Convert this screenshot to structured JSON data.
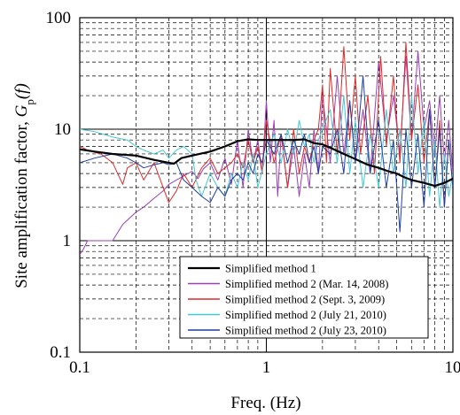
{
  "chart_data": {
    "type": "line",
    "x_scale": "log",
    "y_scale": "log",
    "xlim": [
      0.1,
      10
    ],
    "ylim": [
      0.1,
      100
    ],
    "xlabel": "Freq. (Hz)",
    "ylabel_prefix": "Site amplification factor, ",
    "ylabel_symbol": "G",
    "ylabel_sub": "p",
    "ylabel_suffix": "(f)",
    "x_ticks": [
      {
        "value": 0.1,
        "label": "0.1"
      },
      {
        "value": 1,
        "label": "1"
      },
      {
        "value": 10,
        "label": "10"
      }
    ],
    "y_ticks": [
      {
        "value": 0.1,
        "label": "0.1"
      },
      {
        "value": 1,
        "label": "1"
      },
      {
        "value": 10,
        "label": "10"
      },
      {
        "value": 100,
        "label": "100"
      }
    ],
    "grid": true,
    "legend_position": "bottom-right",
    "series": [
      {
        "name": "Simplified method 1",
        "color": "#000000",
        "width": 2.2,
        "x": [
          0.1,
          0.12,
          0.15,
          0.2,
          0.25,
          0.3,
          0.32,
          0.35,
          0.4,
          0.5,
          0.6,
          0.7,
          0.8,
          0.9,
          1.0,
          1.2,
          1.4,
          1.6,
          1.8,
          2.0,
          2.3,
          2.6,
          3.0,
          3.5,
          4.0,
          4.5,
          5.0,
          5.5,
          6.0,
          7.0,
          8.0,
          9.0,
          10.0
        ],
        "y": [
          6.6,
          6.3,
          6.0,
          5.8,
          5.3,
          5.0,
          4.9,
          5.5,
          5.8,
          6.3,
          7.0,
          7.8,
          8.1,
          8.0,
          8.0,
          8.0,
          8.0,
          8.1,
          7.5,
          7.3,
          6.6,
          6.0,
          5.4,
          4.8,
          4.5,
          4.2,
          4.0,
          3.7,
          3.5,
          3.3,
          3.1,
          3.3,
          3.6
        ]
      },
      {
        "name": "Simplified method 2 (Mar. 14, 2008)",
        "color": "#9b3fb5",
        "width": 1,
        "x": [
          0.1,
          0.105,
          0.11,
          0.13,
          0.15,
          0.17,
          0.2,
          0.22,
          0.25,
          0.28,
          0.3,
          0.33,
          0.36,
          0.4,
          0.43,
          0.46,
          0.5,
          0.55,
          0.6,
          0.65,
          0.7,
          0.75,
          0.8,
          0.85,
          0.9,
          0.95,
          1.0,
          1.05,
          1.1,
          1.15,
          1.2,
          1.3,
          1.4,
          1.5,
          1.6,
          1.7,
          1.8,
          1.9,
          2.0,
          2.2,
          2.4,
          2.6,
          2.8,
          3.0,
          3.3,
          3.6,
          4.0,
          4.4,
          4.8,
          5.2,
          5.6,
          6.0,
          6.5,
          7.0,
          7.5,
          8.0,
          8.5,
          9.0,
          9.5,
          10.0
        ],
        "y": [
          0.75,
          0.85,
          1.0,
          1.0,
          1.0,
          1.4,
          1.8,
          2.0,
          2.4,
          2.8,
          3.2,
          3.5,
          3.8,
          4.2,
          3.6,
          4.4,
          5.0,
          3.5,
          5.5,
          3.2,
          8.0,
          3.0,
          10.0,
          5.0,
          8.0,
          4.0,
          18.0,
          5.0,
          12.0,
          2.5,
          9.0,
          3.0,
          7.0,
          2.5,
          6.0,
          3.0,
          10.0,
          4.0,
          20.0,
          5.0,
          30.0,
          6.0,
          18.0,
          5.0,
          15.0,
          4.0,
          40.0,
          8.0,
          20.0,
          6.0,
          45.0,
          8.0,
          50.0,
          10.0,
          18.0,
          6.0,
          20.0,
          5.0,
          12.0,
          4.0
        ]
      },
      {
        "name": "Simplified method 2 (Sept. 3, 2009)",
        "color": "#e02828",
        "width": 1,
        "x": [
          0.1,
          0.11,
          0.12,
          0.13,
          0.15,
          0.17,
          0.18,
          0.2,
          0.22,
          0.25,
          0.28,
          0.3,
          0.33,
          0.36,
          0.4,
          0.45,
          0.5,
          0.55,
          0.6,
          0.65,
          0.7,
          0.75,
          0.8,
          0.85,
          0.9,
          0.95,
          1.0,
          1.1,
          1.2,
          1.3,
          1.4,
          1.5,
          1.6,
          1.7,
          1.8,
          1.9,
          2.0,
          2.1,
          2.2,
          2.4,
          2.6,
          2.8,
          3.0,
          3.2,
          3.5,
          3.8,
          4.1,
          4.4,
          4.8,
          5.2,
          5.6,
          6.0,
          6.5,
          7.0,
          7.5,
          8.0,
          8.5,
          9.0,
          9.5,
          10.0
        ],
        "y": [
          7.0,
          6.5,
          6.2,
          6.0,
          5.0,
          3.2,
          4.5,
          5.0,
          3.5,
          5.0,
          3.0,
          2.2,
          2.8,
          4.0,
          3.0,
          4.5,
          5.5,
          4.0,
          4.5,
          5.0,
          6.0,
          4.5,
          8.0,
          5.0,
          7.0,
          4.0,
          12.0,
          5.0,
          9.0,
          3.0,
          10.0,
          4.0,
          7.0,
          5.0,
          8.0,
          10.0,
          25.0,
          5.0,
          35.0,
          6.0,
          55.0,
          8.0,
          30.0,
          6.0,
          20.0,
          4.0,
          45.0,
          7.0,
          30.0,
          5.0,
          60.0,
          8.0,
          25.0,
          5.0,
          15.0,
          3.0,
          12.0,
          2.0,
          8.0,
          3.0
        ]
      },
      {
        "name": "Simplified method 2 (July 21, 2010)",
        "color": "#44c8d4",
        "width": 1,
        "x": [
          0.1,
          0.12,
          0.15,
          0.18,
          0.2,
          0.22,
          0.25,
          0.28,
          0.3,
          0.33,
          0.36,
          0.4,
          0.42,
          0.45,
          0.5,
          0.55,
          0.6,
          0.65,
          0.7,
          0.75,
          0.8,
          0.85,
          0.9,
          1.0,
          1.1,
          1.2,
          1.3,
          1.4,
          1.5,
          1.6,
          1.7,
          1.8,
          1.9,
          2.0,
          2.2,
          2.4,
          2.6,
          2.8,
          3.0,
          3.3,
          3.6,
          4.0,
          4.4,
          4.8,
          5.2,
          5.6,
          6.0,
          6.5,
          7.0,
          7.5,
          8.0,
          8.5,
          9.0,
          9.5,
          10.0
        ],
        "y": [
          10.0,
          9.5,
          8.5,
          8.0,
          7.0,
          6.5,
          6.0,
          6.5,
          5.5,
          6.5,
          7.0,
          6.0,
          3.5,
          2.5,
          4.0,
          3.0,
          2.5,
          4.0,
          3.0,
          5.0,
          3.5,
          6.0,
          3.0,
          6.0,
          9.0,
          5.0,
          10.0,
          6.0,
          12.0,
          7.0,
          9.0,
          5.0,
          8.0,
          10.0,
          15.0,
          5.0,
          20.0,
          4.0,
          12.0,
          3.0,
          9.0,
          3.0,
          15.0,
          4.0,
          10.0,
          3.0,
          20.0,
          4.0,
          12.0,
          2.5,
          8.0,
          2.0,
          6.0,
          2.5,
          4.0
        ]
      },
      {
        "name": "Simplified method 2 (July 23, 2010)",
        "color": "#1f3f9f",
        "width": 1,
        "x": [
          0.1,
          0.12,
          0.15,
          0.18,
          0.2,
          0.22,
          0.25,
          0.28,
          0.3,
          0.33,
          0.36,
          0.4,
          0.45,
          0.5,
          0.55,
          0.6,
          0.65,
          0.7,
          0.75,
          0.8,
          0.85,
          0.9,
          0.95,
          1.0,
          1.1,
          1.2,
          1.3,
          1.4,
          1.5,
          1.6,
          1.7,
          1.8,
          1.9,
          2.0,
          2.2,
          2.4,
          2.6,
          2.8,
          3.0,
          3.3,
          3.6,
          4.0,
          4.4,
          4.8,
          5.2,
          5.6,
          6.0,
          6.5,
          7.0,
          7.5,
          8.0,
          8.5,
          9.0,
          9.5,
          10.0
        ],
        "y": [
          5.0,
          5.5,
          6.0,
          5.5,
          5.0,
          4.5,
          4.8,
          5.0,
          4.8,
          5.0,
          3.5,
          3.0,
          2.5,
          2.2,
          3.0,
          2.5,
          3.5,
          4.0,
          3.5,
          5.0,
          4.0,
          6.0,
          5.0,
          8.0,
          6.0,
          9.0,
          5.0,
          8.0,
          6.0,
          9.0,
          5.0,
          7.0,
          4.0,
          7.0,
          6.0,
          10.0,
          4.0,
          18.0,
          5.0,
          30.0,
          4.0,
          12.0,
          3.0,
          8.0,
          1.2,
          10.0,
          3.0,
          9.0,
          2.0,
          15.0,
          3.0,
          10.0,
          2.0,
          8.0,
          3.0
        ]
      }
    ]
  }
}
